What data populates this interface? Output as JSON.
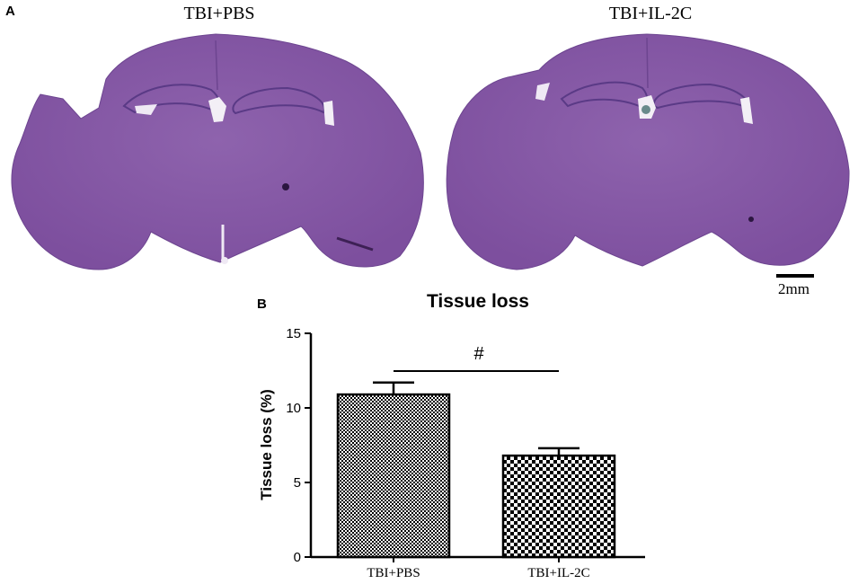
{
  "panel_a": {
    "letter": "A",
    "left_title": "TBI+PBS",
    "right_title": "TBI+IL-2C",
    "scale_bar_label": "2mm",
    "stain_color": "#8a5aa6"
  },
  "panel_b": {
    "letter": "B",
    "significance_mark": "#"
  },
  "chart_data": {
    "type": "bar",
    "title": "Tissue loss",
    "xlabel": "",
    "ylabel": "Tissue loss (%)",
    "categories": [
      "TBI+PBS",
      "TBI+IL-2C"
    ],
    "values": [
      10.9,
      6.8
    ],
    "errors": [
      0.8,
      0.5
    ],
    "ylim": [
      0,
      15
    ],
    "yticks": [
      0,
      5,
      10,
      15
    ],
    "grid": false,
    "legend": "none",
    "bar_fill": [
      "dense checkered",
      "coarse checkered"
    ]
  }
}
